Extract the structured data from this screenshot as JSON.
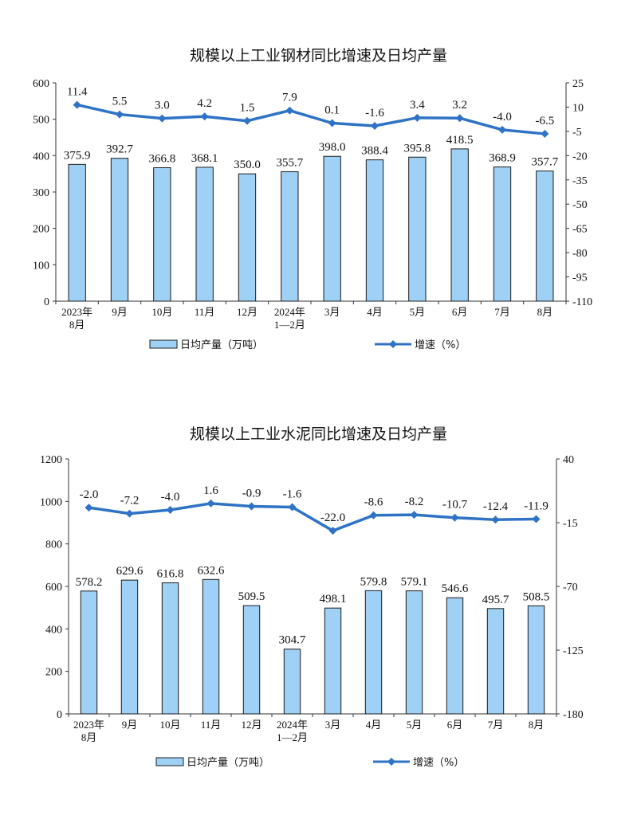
{
  "chart_data": [
    {
      "type": "bar",
      "title": "规模以上工业钢材同比增速及日均产量",
      "categories": [
        [
          "2023年",
          "8月"
        ],
        [
          "9月"
        ],
        [
          "10月"
        ],
        [
          "11月"
        ],
        [
          "12月"
        ],
        [
          "2024年",
          "1—2月"
        ],
        [
          "3月"
        ],
        [
          "4月"
        ],
        [
          "5月"
        ],
        [
          "6月"
        ],
        [
          "7月"
        ],
        [
          "8月"
        ]
      ],
      "series": [
        {
          "name": "日均产量（万吨）",
          "type": "bar",
          "axis": "left",
          "values": [
            375.9,
            392.7,
            366.8,
            368.1,
            350.0,
            355.7,
            398.0,
            388.4,
            395.8,
            418.5,
            368.9,
            357.7
          ],
          "labels": [
            "375.9",
            "392.7",
            "366.8",
            "368.1",
            "350.0",
            "355.7",
            "398.0",
            "388.4",
            "395.8",
            "418.5",
            "368.9",
            "357.7"
          ]
        },
        {
          "name": "增速（%）",
          "type": "line",
          "axis": "right",
          "values": [
            11.4,
            5.5,
            3.0,
            4.2,
            1.5,
            7.9,
            0.1,
            -1.6,
            3.4,
            3.2,
            -4.0,
            -6.5
          ],
          "labels": [
            "11.4",
            "5.5",
            "3.0",
            "4.2",
            "1.5",
            "7.9",
            "0.1",
            "-1.6",
            "3.4",
            "3.2",
            "-4.0",
            "-6.5"
          ]
        }
      ],
      "y_left": {
        "ylim": [
          0,
          600
        ],
        "ticks": [
          0,
          100,
          200,
          300,
          400,
          500,
          600
        ]
      },
      "y_right": {
        "ylim": [
          -110,
          25
        ],
        "ticks": [
          25,
          10,
          -5,
          -20,
          -35,
          -50,
          -65,
          -80,
          -95,
          -110
        ]
      },
      "legend": {
        "position": "bottom",
        "bar_label": "日均产量（万吨）",
        "line_label": "增速（%）"
      },
      "colors": {
        "bar_fill": "#9fd0f5",
        "bar_stroke": "#1b1b1b",
        "line": "#2e73c5"
      },
      "grid": false
    },
    {
      "type": "bar",
      "title": "规模以上工业水泥同比增速及日均产量",
      "categories": [
        [
          "2023年",
          "8月"
        ],
        [
          "9月"
        ],
        [
          "10月"
        ],
        [
          "11月"
        ],
        [
          "12月"
        ],
        [
          "2024年",
          "1—2月"
        ],
        [
          "3月"
        ],
        [
          "4月"
        ],
        [
          "5月"
        ],
        [
          "6月"
        ],
        [
          "7月"
        ],
        [
          "8月"
        ]
      ],
      "series": [
        {
          "name": "日均产量（万吨）",
          "type": "bar",
          "axis": "left",
          "values": [
            578.2,
            629.6,
            616.8,
            632.6,
            509.5,
            304.7,
            498.1,
            579.8,
            579.1,
            546.6,
            495.7,
            508.5
          ],
          "labels": [
            "578.2",
            "629.6",
            "616.8",
            "632.6",
            "509.5",
            "304.7",
            "498.1",
            "579.8",
            "579.1",
            "546.6",
            "495.7",
            "508.5"
          ]
        },
        {
          "name": "增速（%）",
          "type": "line",
          "axis": "right",
          "values": [
            -2.0,
            -7.2,
            -4.0,
            1.6,
            -0.9,
            -1.6,
            -22.0,
            -8.6,
            -8.2,
            -10.7,
            -12.4,
            -11.9
          ],
          "labels": [
            "-2.0",
            "-7.2",
            "-4.0",
            "1.6",
            "-0.9",
            "-1.6",
            "-22.0",
            "-8.6",
            "-8.2",
            "-10.7",
            "-12.4",
            "-11.9"
          ]
        }
      ],
      "y_left": {
        "ylim": [
          0,
          1200
        ],
        "ticks": [
          0,
          200,
          400,
          600,
          800,
          1000,
          1200
        ]
      },
      "y_right": {
        "ylim": [
          -180,
          40
        ],
        "ticks": [
          40,
          -15,
          -70,
          -125,
          -180
        ]
      },
      "legend": {
        "position": "bottom",
        "bar_label": "日均产量（万吨）",
        "line_label": "增速（%）"
      },
      "colors": {
        "bar_fill": "#9fd0f5",
        "bar_stroke": "#1b1b1b",
        "line": "#2e73c5"
      },
      "grid": false
    }
  ]
}
